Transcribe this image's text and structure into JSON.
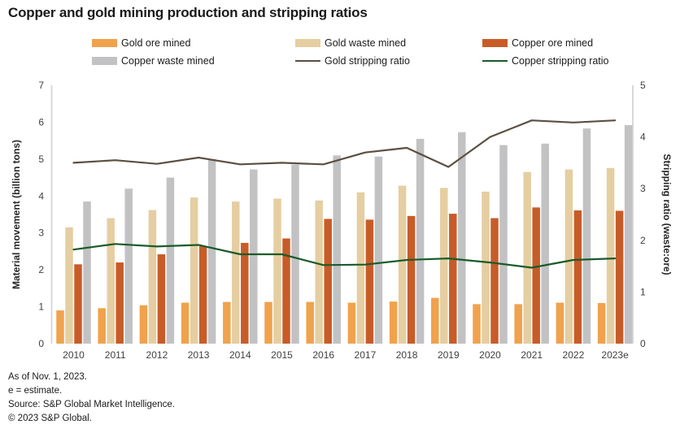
{
  "title": "Copper and gold mining production and stripping ratios",
  "legend": [
    {
      "label": "Gold ore mined",
      "type": "rect",
      "color": "#F0A24D"
    },
    {
      "label": "Gold waste mined",
      "type": "rect",
      "color": "#E5CEA1"
    },
    {
      "label": "Copper ore mined",
      "type": "rect",
      "color": "#C85C28"
    },
    {
      "label": "Copper waste mined",
      "type": "rect",
      "color": "#C2C2C4"
    },
    {
      "label": "Gold stripping ratio",
      "type": "line",
      "color": "#5B4F41"
    },
    {
      "label": "Copper stripping ratio",
      "type": "line",
      "color": "#1A5B2A"
    }
  ],
  "chart_data": {
    "type": "bar+line",
    "categories": [
      "2010",
      "2011",
      "2012",
      "2013",
      "2014",
      "2015",
      "2016",
      "2017",
      "2018",
      "2019",
      "2020",
      "2021",
      "2022",
      "2023e"
    ],
    "bar_series": [
      {
        "name": "Gold ore mined",
        "axis": "left",
        "color": "#F0A24D",
        "values": [
          0.9,
          0.96,
          1.04,
          1.11,
          1.13,
          1.13,
          1.13,
          1.11,
          1.14,
          1.24,
          1.07,
          1.07,
          1.11,
          1.1
        ]
      },
      {
        "name": "Gold waste mined",
        "axis": "left",
        "color": "#E5CEA1",
        "values": [
          3.15,
          3.4,
          3.62,
          3.96,
          3.85,
          3.93,
          3.88,
          4.1,
          4.28,
          4.22,
          4.12,
          4.65,
          4.72,
          4.76
        ]
      },
      {
        "name": "Copper ore mined",
        "axis": "left",
        "color": "#C85C28",
        "values": [
          2.15,
          2.2,
          2.42,
          2.64,
          2.73,
          2.85,
          3.38,
          3.36,
          3.46,
          3.52,
          3.4,
          3.69,
          3.61,
          3.6
        ]
      },
      {
        "name": "Copper waste mined",
        "axis": "left",
        "color": "#C2C2C4",
        "values": [
          3.85,
          4.2,
          4.5,
          5.0,
          4.72,
          4.85,
          5.1,
          5.07,
          5.55,
          5.73,
          5.38,
          5.42,
          5.83,
          5.92
        ]
      }
    ],
    "line_series": [
      {
        "name": "Gold stripping ratio",
        "axis": "right",
        "color": "#5B4F41",
        "values": [
          3.5,
          3.55,
          3.48,
          3.6,
          3.47,
          3.5,
          3.47,
          3.7,
          3.79,
          3.42,
          4.0,
          4.32,
          4.28,
          4.32
        ]
      },
      {
        "name": "Copper stripping ratio",
        "axis": "right",
        "color": "#1A5B2A",
        "values": [
          1.82,
          1.93,
          1.88,
          1.91,
          1.73,
          1.73,
          1.52,
          1.53,
          1.62,
          1.65,
          1.57,
          1.47,
          1.62,
          1.65
        ]
      }
    ],
    "left_axis": {
      "label": "Material movement (billion tons)",
      "min": 0,
      "max": 7,
      "ticks": [
        0,
        1,
        2,
        3,
        4,
        5,
        6,
        7
      ]
    },
    "right_axis": {
      "label": "Stripping ratio (waste:ore)",
      "min": 0,
      "max": 5,
      "ticks": [
        0,
        1,
        2,
        3,
        4,
        5
      ]
    },
    "grid": false,
    "legend_position": "top"
  },
  "footer": {
    "lines": [
      "As of Nov. 1, 2023.",
      "e = estimate.",
      "Source: S&P Global Market Intelligence.",
      "© 2023 S&P Global."
    ]
  },
  "colors": {
    "axis_line": "#D8D8D8",
    "tick_text": "#3F3F3F",
    "axis_title_text": "#262626"
  }
}
